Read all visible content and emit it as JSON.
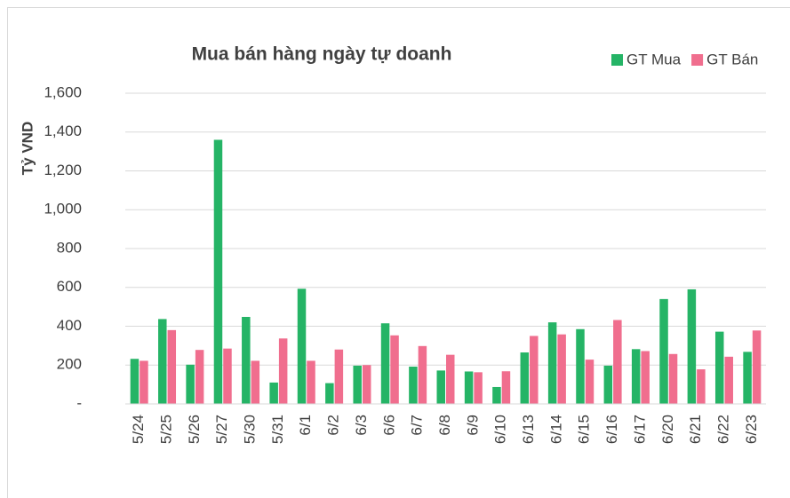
{
  "chart_data": {
    "type": "bar",
    "title": "Mua bán hàng ngày tự doanh",
    "y_label": "Tỷ VND",
    "categories": [
      "5/24",
      "5/25",
      "5/26",
      "5/27",
      "5/30",
      "5/31",
      "6/1",
      "6/2",
      "6/3",
      "6/6",
      "6/7",
      "6/8",
      "6/9",
      "6/10",
      "6/13",
      "6/14",
      "6/15",
      "6/16",
      "6/17",
      "6/20",
      "6/21",
      "6/22",
      "6/23"
    ],
    "series": [
      {
        "name": "GT Mua",
        "color": "#25b466",
        "values": [
          232,
          437,
          202,
          1360,
          448,
          110,
          593,
          107,
          197,
          415,
          192,
          172,
          167,
          87,
          265,
          420,
          385,
          197,
          282,
          540,
          590,
          372,
          268
        ]
      },
      {
        "name": "GT Bán",
        "color": "#f06e8e",
        "values": [
          222,
          380,
          278,
          285,
          222,
          337,
          222,
          280,
          200,
          353,
          298,
          253,
          163,
          168,
          350,
          358,
          228,
          432,
          272,
          257,
          178,
          243,
          378
        ]
      }
    ],
    "ylim": [
      0,
      1600
    ],
    "yticks": [
      {
        "value": 0,
        "label": "-"
      },
      200,
      400,
      600,
      800,
      {
        "value": 1000,
        "label": "1,000"
      },
      {
        "value": 1200,
        "label": "1,200"
      },
      {
        "value": 1400,
        "label": "1,400"
      },
      {
        "value": 1600,
        "label": "1,600"
      }
    ],
    "grid": true,
    "legend": "top-right"
  }
}
